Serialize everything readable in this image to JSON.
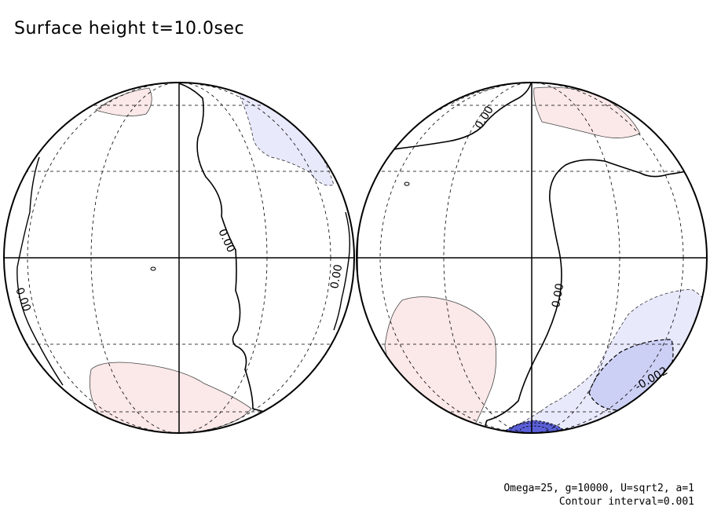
{
  "title": "Surface height t=10.0sec",
  "params_line1": "Omega=25, g=10000, U=sqrt2, a=1",
  "params_line2": "Contour interval=0.001",
  "labels": {
    "left_center": "0.00",
    "left_limb_left": "0.00",
    "left_limb_right": "0.00",
    "right_top": "0.00",
    "right_center": "0.00",
    "right_neg": "-0.002"
  },
  "colors": {
    "positive_fill": "#fbe8e8",
    "negative_light": "#e8e9fb",
    "negative_mid": "#cdd0f5",
    "negative_strong": "#5b60d9",
    "line": "#000000"
  }
}
